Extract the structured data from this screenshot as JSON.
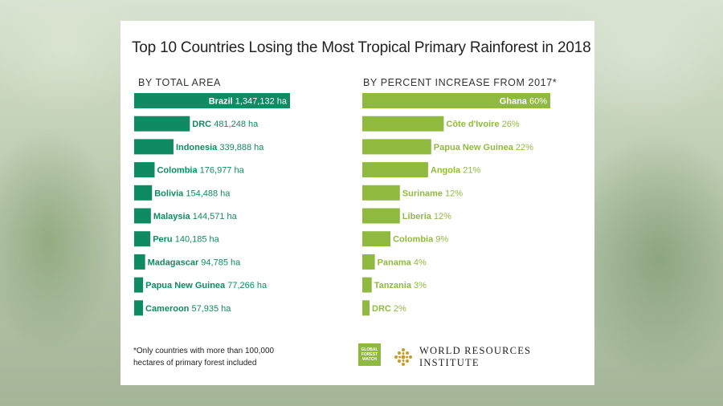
{
  "title": "Top 10 Countries Losing the Most Tropical Primary Rainforest in 2018",
  "footnote": {
    "line1": "*Only countries with more than 100,000",
    "line2": "hectares of primary forest included"
  },
  "logos": {
    "gfw_line1": "GLOBAL",
    "gfw_line2": "FOREST",
    "gfw_line3": "WATCH",
    "wri": "WORLD RESOURCES INSTITUTE"
  },
  "colors": {
    "area": "#0f8a63",
    "percent": "#8fba3f",
    "title": "#222222"
  },
  "chart_data": [
    {
      "type": "bar",
      "orientation": "horizontal",
      "title": "BY TOTAL AREA",
      "categories": [
        "Brazil",
        "DRC",
        "Indonesia",
        "Colombia",
        "Bolivia",
        "Malaysia",
        "Peru",
        "Madagascar",
        "Papua New Guinea",
        "Cameroon"
      ],
      "values": [
        1347132,
        481248,
        339888,
        176977,
        154488,
        144571,
        140185,
        94785,
        77266,
        57935
      ],
      "value_labels": [
        "1,347,132 ha",
        "481,248 ha",
        "339,888 ha",
        "176,977 ha",
        "154,488 ha",
        "144,571 ha",
        "140,185 ha",
        "94,785 ha",
        "77,266 ha",
        "57,935 ha"
      ],
      "unit": "ha"
    },
    {
      "type": "bar",
      "orientation": "horizontal",
      "title": "BY PERCENT INCREASE FROM 2017*",
      "categories": [
        "Ghana",
        "Côte d'Ivoire",
        "Papua New Guinea",
        "Angola",
        "Suriname",
        "Liberia",
        "Colombia",
        "Panama",
        "Tanzania",
        "DRC"
      ],
      "values": [
        60,
        26,
        22,
        21,
        12,
        12,
        9,
        4,
        3,
        2
      ],
      "value_labels": [
        "60%",
        "26%",
        "22%",
        "21%",
        "12%",
        "12%",
        "9%",
        "4%",
        "3%",
        "2%"
      ],
      "unit": "%"
    }
  ]
}
